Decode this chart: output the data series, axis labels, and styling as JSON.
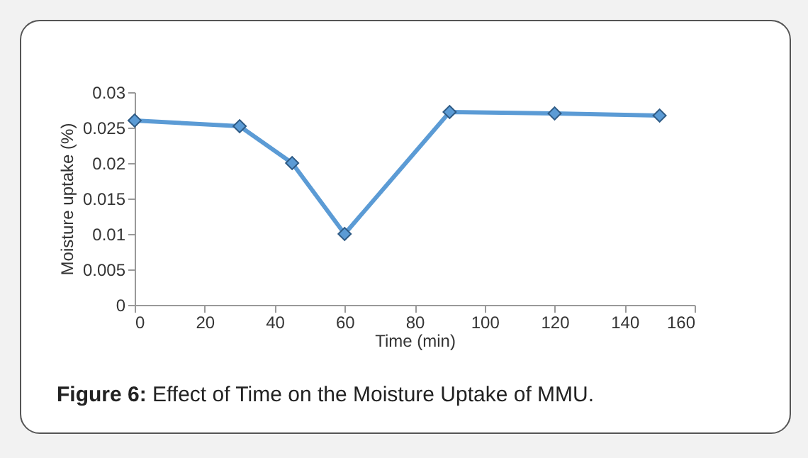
{
  "chart_data": {
    "type": "line",
    "xlabel": "Time (min)",
    "ylabel": "Moisture uptake (%)",
    "x": [
      0,
      30,
      45,
      60,
      90,
      120,
      150
    ],
    "series": [
      {
        "color": "#5b9bd5",
        "values": [
          0.026,
          0.0252,
          0.02,
          0.01,
          0.0272,
          0.027,
          0.0267
        ]
      }
    ],
    "xlim": [
      0,
      160
    ],
    "xticks": [
      0,
      20,
      40,
      60,
      80,
      100,
      120,
      140,
      160
    ],
    "ylim": [
      0,
      0.03
    ],
    "yticks": [
      0,
      0.005,
      0.01,
      0.015,
      0.02,
      0.025,
      0.03
    ],
    "grid": false,
    "legend": false,
    "marker": "diamond",
    "line_style": "solid",
    "annotations": [
      "Figure 6: Effect of Time on the Moisture Uptake of MMU."
    ]
  }
}
